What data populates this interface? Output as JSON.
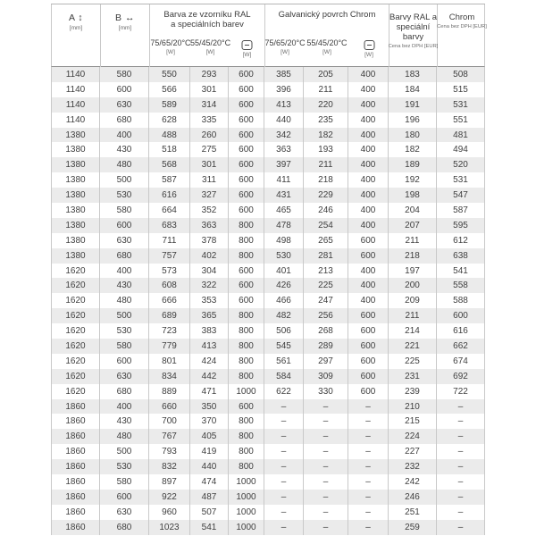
{
  "header": {
    "col_a": {
      "label": "A",
      "arrow": "↕",
      "unit": "[mm]"
    },
    "col_b": {
      "label": "B",
      "arrow": "↔",
      "unit": "[mm]"
    },
    "group_ral": {
      "line1": "Barva ze vzorníku RAL",
      "line2": "a speciálních barev"
    },
    "group_chrome": {
      "label": "Galvanický povrch Chrom"
    },
    "sub_temp_high": "75/65/20°C",
    "sub_temp_low": "55/45/20°C",
    "watt_unit": "[W]",
    "price_ral": {
      "line1": "Barvy RAL a",
      "line2": "speciální barvy",
      "sub": "Cena bez DPH [EUR]"
    },
    "price_chrome": {
      "label": "Chrom",
      "sub": "Cena bez DPH [EUR]"
    }
  },
  "table": {
    "column_keys": [
      "A [mm]",
      "B [mm]",
      "RAL 75/65/20°C [W]",
      "RAL 55/45/20°C [W]",
      "RAL electric [W]",
      "Chrom 75/65/20°C [W]",
      "Chrom 55/45/20°C [W]",
      "Chrom electric [W]",
      "Barvy RAL cena bez DPH [EUR]",
      "Chrom cena bez DPH [EUR]"
    ],
    "rows": [
      [
        "1140",
        "580",
        "550",
        "293",
        "600",
        "385",
        "205",
        "400",
        "183",
        "508"
      ],
      [
        "1140",
        "600",
        "566",
        "301",
        "600",
        "396",
        "211",
        "400",
        "184",
        "515"
      ],
      [
        "1140",
        "630",
        "589",
        "314",
        "600",
        "413",
        "220",
        "400",
        "191",
        "531"
      ],
      [
        "1140",
        "680",
        "628",
        "335",
        "600",
        "440",
        "235",
        "400",
        "196",
        "551"
      ],
      [
        "1380",
        "400",
        "488",
        "260",
        "600",
        "342",
        "182",
        "400",
        "180",
        "481"
      ],
      [
        "1380",
        "430",
        "518",
        "275",
        "600",
        "363",
        "193",
        "400",
        "182",
        "494"
      ],
      [
        "1380",
        "480",
        "568",
        "301",
        "600",
        "397",
        "211",
        "400",
        "189",
        "520"
      ],
      [
        "1380",
        "500",
        "587",
        "311",
        "600",
        "411",
        "218",
        "400",
        "192",
        "531"
      ],
      [
        "1380",
        "530",
        "616",
        "327",
        "600",
        "431",
        "229",
        "400",
        "198",
        "547"
      ],
      [
        "1380",
        "580",
        "664",
        "352",
        "600",
        "465",
        "246",
        "400",
        "204",
        "587"
      ],
      [
        "1380",
        "600",
        "683",
        "363",
        "800",
        "478",
        "254",
        "400",
        "207",
        "595"
      ],
      [
        "1380",
        "630",
        "711",
        "378",
        "800",
        "498",
        "265",
        "600",
        "211",
        "612"
      ],
      [
        "1380",
        "680",
        "757",
        "402",
        "800",
        "530",
        "281",
        "600",
        "218",
        "638"
      ],
      [
        "1620",
        "400",
        "573",
        "304",
        "600",
        "401",
        "213",
        "400",
        "197",
        "541"
      ],
      [
        "1620",
        "430",
        "608",
        "322",
        "600",
        "426",
        "225",
        "400",
        "200",
        "558"
      ],
      [
        "1620",
        "480",
        "666",
        "353",
        "600",
        "466",
        "247",
        "400",
        "209",
        "588"
      ],
      [
        "1620",
        "500",
        "689",
        "365",
        "800",
        "482",
        "256",
        "600",
        "211",
        "600"
      ],
      [
        "1620",
        "530",
        "723",
        "383",
        "800",
        "506",
        "268",
        "600",
        "214",
        "616"
      ],
      [
        "1620",
        "580",
        "779",
        "413",
        "800",
        "545",
        "289",
        "600",
        "221",
        "662"
      ],
      [
        "1620",
        "600",
        "801",
        "424",
        "800",
        "561",
        "297",
        "600",
        "225",
        "674"
      ],
      [
        "1620",
        "630",
        "834",
        "442",
        "800",
        "584",
        "309",
        "600",
        "231",
        "692"
      ],
      [
        "1620",
        "680",
        "889",
        "471",
        "1000",
        "622",
        "330",
        "600",
        "239",
        "722"
      ],
      [
        "1860",
        "400",
        "660",
        "350",
        "600",
        "–",
        "–",
        "–",
        "210",
        "–"
      ],
      [
        "1860",
        "430",
        "700",
        "370",
        "800",
        "–",
        "–",
        "–",
        "215",
        "–"
      ],
      [
        "1860",
        "480",
        "767",
        "405",
        "800",
        "–",
        "–",
        "–",
        "224",
        "–"
      ],
      [
        "1860",
        "500",
        "793",
        "419",
        "800",
        "–",
        "–",
        "–",
        "227",
        "–"
      ],
      [
        "1860",
        "530",
        "832",
        "440",
        "800",
        "–",
        "–",
        "–",
        "232",
        "–"
      ],
      [
        "1860",
        "580",
        "897",
        "474",
        "1000",
        "–",
        "–",
        "–",
        "242",
        "–"
      ],
      [
        "1860",
        "600",
        "922",
        "487",
        "1000",
        "–",
        "–",
        "–",
        "246",
        "–"
      ],
      [
        "1860",
        "630",
        "960",
        "507",
        "1000",
        "–",
        "–",
        "–",
        "251",
        "–"
      ],
      [
        "1860",
        "680",
        "1023",
        "541",
        "1000",
        "–",
        "–",
        "–",
        "259",
        "–"
      ]
    ]
  },
  "colors": {
    "row_shaded": "#ebebeb",
    "grid_border": "#c9c9c9",
    "header_bottom_border": "#8f8f8f",
    "text": "#3c3c3c"
  }
}
